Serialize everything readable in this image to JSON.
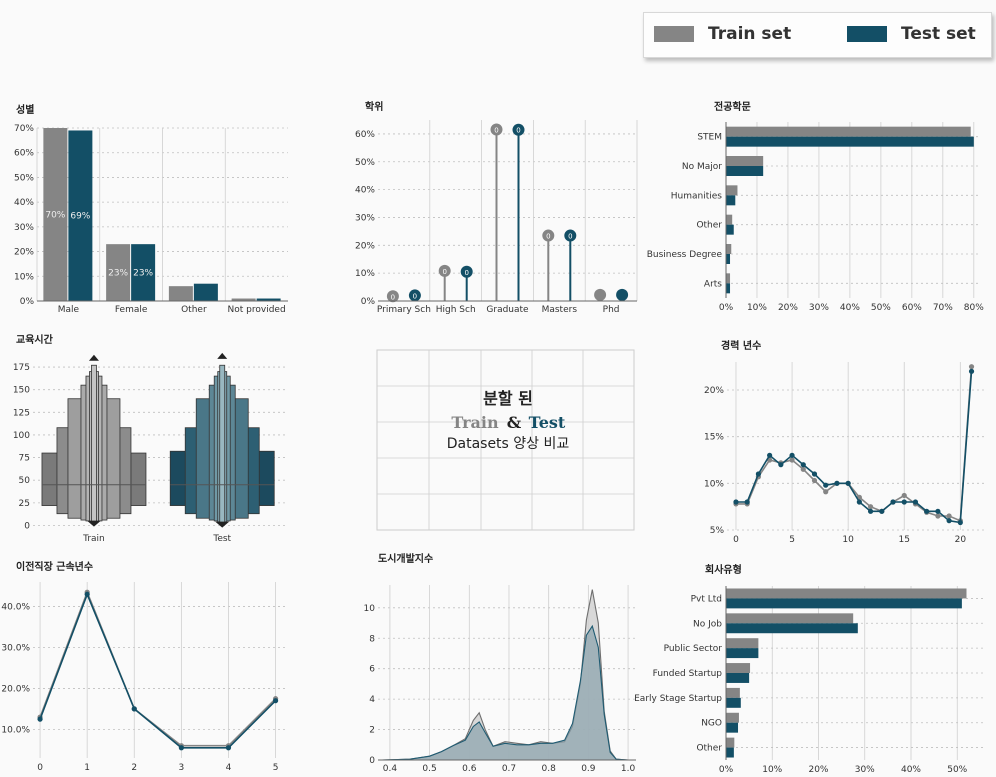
{
  "colors": {
    "train": "#858585",
    "test": "#134f66"
  },
  "legend": {
    "train_label": "Train set",
    "test_label": "Test set"
  },
  "center_text": {
    "line1": "분할 된",
    "train": "Train",
    "amp": "&",
    "test": "Test",
    "line3": "Datasets 양상 비교"
  },
  "chart_data": [
    {
      "id": "gender",
      "type": "bar",
      "title": "성별",
      "categories": [
        "Male",
        "Female",
        "Other",
        "Not provided"
      ],
      "series": [
        {
          "name": "Train set",
          "values": [
            70,
            23,
            6,
            1
          ]
        },
        {
          "name": "Test set",
          "values": [
            69,
            23,
            7,
            1
          ]
        }
      ],
      "data_labels": [
        [
          "70%",
          "69%"
        ],
        [
          "23%",
          "23%"
        ]
      ],
      "ylim": [
        0,
        70
      ],
      "yticks": [
        0,
        10,
        20,
        30,
        40,
        50,
        60,
        70
      ],
      "ytick_labels": [
        "0%",
        "10%",
        "20%",
        "30%",
        "40%",
        "50%",
        "60%",
        "70%"
      ]
    },
    {
      "id": "education",
      "type": "lollipop",
      "title": "학위",
      "categories": [
        "Primary Sch",
        "High Sch",
        "Graduate",
        "Masters",
        "Phd"
      ],
      "series": [
        {
          "name": "Train set",
          "values": [
            1.7,
            10.8,
            61.6,
            23.5,
            2.2
          ]
        },
        {
          "name": "Test set",
          "values": [
            2.0,
            10.5,
            61.5,
            23.5,
            2.2
          ]
        }
      ],
      "point_labels": [
        "0",
        "0",
        "0",
        "0"
      ],
      "ylim": [
        0,
        65
      ],
      "yticks": [
        0,
        10,
        20,
        30,
        40,
        50,
        60
      ],
      "ytick_labels": [
        "0%",
        "10%",
        "20%",
        "30%",
        "40%",
        "50%",
        "60%"
      ]
    },
    {
      "id": "major",
      "type": "barh",
      "title": "전공학문",
      "categories": [
        "STEM",
        "No Major",
        "Humanities",
        "Other",
        "Business Degree",
        "Arts"
      ],
      "series": [
        {
          "name": "Train set",
          "values": [
            79,
            12,
            3.7,
            2.0,
            1.7,
            1.3
          ]
        },
        {
          "name": "Test set",
          "values": [
            80,
            12,
            3.0,
            2.5,
            1.3,
            1.3
          ]
        }
      ],
      "xlim": [
        0,
        82
      ],
      "xticks": [
        0,
        10,
        20,
        30,
        40,
        50,
        60,
        70,
        80
      ],
      "xtick_labels": [
        "0%",
        "10%",
        "20%",
        "30%",
        "40%",
        "50%",
        "60%",
        "70%",
        "80%"
      ]
    },
    {
      "id": "training_hours",
      "type": "boxen",
      "title": "교육시간",
      "categories": [
        "Train",
        "Test"
      ],
      "ylim": [
        -5,
        185
      ],
      "yticks": [
        0,
        25,
        50,
        75,
        100,
        125,
        150,
        175
      ],
      "ytick_labels": [
        "0",
        "25",
        "50",
        "75",
        "100",
        "125",
        "150",
        "175"
      ],
      "median": [
        45,
        45
      ],
      "boxes": [
        [
          [
            22,
            80
          ],
          [
            13,
            108
          ],
          [
            8,
            140
          ],
          [
            6,
            155
          ],
          [
            5,
            165
          ],
          [
            4,
            170
          ],
          [
            3,
            177
          ]
        ],
        [
          [
            22,
            82
          ],
          [
            13,
            108
          ],
          [
            8,
            140
          ],
          [
            6,
            155
          ],
          [
            5,
            165
          ],
          [
            4,
            170
          ],
          [
            3,
            177
          ]
        ]
      ],
      "fliers_top": [
        182,
        184
      ],
      "fliers_bottom": [
        2,
        1
      ]
    },
    {
      "id": "experience",
      "type": "line",
      "title": "경력 년수",
      "x": [
        0,
        1,
        2,
        3,
        4,
        5,
        6,
        7,
        8,
        9,
        10,
        11,
        12,
        13,
        14,
        15,
        16,
        17,
        18,
        19,
        20,
        21
      ],
      "series": [
        {
          "name": "Train set",
          "values": [
            7.8,
            7.8,
            10.7,
            12.5,
            12.2,
            12.5,
            11.5,
            10.3,
            9.1,
            10.0,
            10.0,
            8.5,
            7.5,
            7.0,
            8.0,
            8.7,
            7.8,
            6.9,
            6.5,
            6.5,
            6.0,
            22.5
          ]
        },
        {
          "name": "Test set",
          "values": [
            8.0,
            8.0,
            11.0,
            13.0,
            12.0,
            13.0,
            12.0,
            11.0,
            9.8,
            10.0,
            10.0,
            8.0,
            7.0,
            7.0,
            8.0,
            8.0,
            8.0,
            7.0,
            7.0,
            6.0,
            5.8,
            22.0
          ]
        }
      ],
      "ylim": [
        5,
        23
      ],
      "yticks": [
        5,
        10,
        15,
        20
      ],
      "ytick_labels": [
        "5%",
        "10%",
        "15%",
        "20%"
      ],
      "xticks": [
        0,
        5,
        10,
        15,
        20
      ]
    },
    {
      "id": "last_new_job",
      "type": "line",
      "title": "이전직장 근속년수",
      "x": [
        0,
        1,
        2,
        3,
        4,
        5
      ],
      "series": [
        {
          "name": "Train set",
          "values": [
            13.0,
            43.5,
            15.0,
            6.0,
            6.0,
            17.5
          ]
        },
        {
          "name": "Test set",
          "values": [
            12.5,
            43.0,
            15.0,
            5.5,
            5.5,
            17.0
          ]
        }
      ],
      "ylim": [
        3,
        46
      ],
      "yticks": [
        10,
        20,
        30,
        40
      ],
      "ytick_labels": [
        "10.0%",
        "20.0%",
        "30.0%",
        "40.0%"
      ],
      "xticks": [
        0,
        1,
        2,
        3,
        4,
        5
      ]
    },
    {
      "id": "city_index",
      "type": "area",
      "title": "도시개발지수",
      "x": [
        0.38,
        0.45,
        0.5,
        0.53,
        0.56,
        0.59,
        0.61,
        0.625,
        0.64,
        0.66,
        0.69,
        0.72,
        0.75,
        0.78,
        0.81,
        0.84,
        0.86,
        0.88,
        0.895,
        0.91,
        0.925,
        0.94,
        0.955,
        0.97,
        1.0
      ],
      "series": [
        {
          "name": "Train set",
          "values": [
            0,
            0.05,
            0.25,
            0.55,
            0.95,
            1.4,
            2.6,
            3.1,
            2.0,
            0.9,
            1.2,
            1.1,
            1.0,
            1.2,
            1.1,
            1.2,
            2.2,
            5.0,
            9.2,
            11.2,
            9.0,
            3.2,
            0.6,
            0.05,
            0
          ]
        },
        {
          "name": "Test set",
          "values": [
            0,
            0.05,
            0.25,
            0.55,
            0.95,
            1.3,
            2.2,
            2.5,
            1.8,
            0.9,
            1.1,
            1.0,
            1.0,
            1.1,
            1.1,
            1.3,
            2.4,
            5.2,
            8.2,
            8.8,
            7.4,
            3.0,
            0.5,
            0.05,
            0
          ]
        }
      ],
      "xlim": [
        0.37,
        1.02
      ],
      "ylim": [
        0,
        11.5
      ],
      "xticks": [
        0.4,
        0.5,
        0.6,
        0.7,
        0.8,
        0.9,
        1.0
      ],
      "xtick_labels": [
        "0.4",
        "0.5",
        "0.6",
        "0.7",
        "0.8",
        "0.9",
        "1.0"
      ],
      "yticks": [
        0,
        2,
        4,
        6,
        8,
        10
      ],
      "ytick_labels": [
        "0",
        "2",
        "4",
        "6",
        "8",
        "10"
      ]
    },
    {
      "id": "company_type",
      "type": "barh",
      "title": "회사유형",
      "categories": [
        "Pvt Ltd",
        "No Job",
        "Public Sector",
        "Funded Startup",
        "Early Stage Startup",
        "NGO",
        "Other"
      ],
      "series": [
        {
          "name": "Train set",
          "values": [
            52,
            27.5,
            7,
            5.2,
            3,
            2.8,
            1.8
          ]
        },
        {
          "name": "Test set",
          "values": [
            51,
            28.5,
            7,
            5.0,
            3.2,
            2.6,
            1.7
          ]
        }
      ],
      "xlim": [
        0,
        56
      ],
      "xticks": [
        0,
        10,
        20,
        30,
        40,
        50
      ],
      "xtick_labels": [
        "0%",
        "10%",
        "20%",
        "30%",
        "40%",
        "50%"
      ]
    }
  ]
}
